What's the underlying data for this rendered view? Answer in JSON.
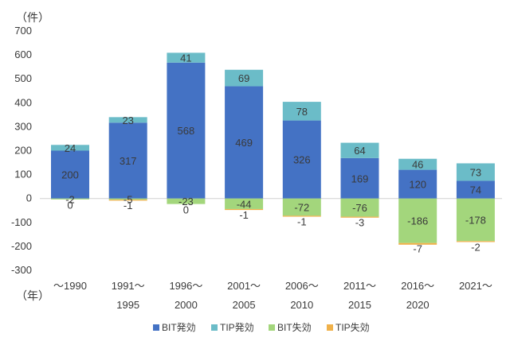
{
  "chart_data": {
    "type": "bar",
    "stacked": true,
    "y_unit_label": "（件）",
    "x_unit_label": "（年）",
    "ylim": [
      -300,
      700
    ],
    "y_ticks": [
      700,
      600,
      500,
      400,
      300,
      200,
      100,
      0,
      -100,
      -200,
      -300
    ],
    "grid": false,
    "legend_position": "bottom",
    "categories": [
      [
        "～1990",
        ""
      ],
      [
        "1991～",
        "1995"
      ],
      [
        "1996～",
        "2000"
      ],
      [
        "2001～",
        "2005"
      ],
      [
        "2006～",
        "2010"
      ],
      [
        "2011～",
        "2015"
      ],
      [
        "2016～",
        "2020"
      ],
      [
        "2021～",
        ""
      ]
    ],
    "series": [
      {
        "name": "BIT発効",
        "color": "#4472c4",
        "values": [
          200,
          317,
          568,
          469,
          326,
          169,
          120,
          74
        ]
      },
      {
        "name": "TIP発効",
        "color": "#6bbcc8",
        "values": [
          24,
          23,
          41,
          69,
          78,
          64,
          46,
          73
        ]
      },
      {
        "name": "BIT失効",
        "color": "#a3d67c",
        "values": [
          -2,
          -5,
          -23,
          -44,
          -72,
          -76,
          -186,
          -178
        ]
      },
      {
        "name": "TIP失効",
        "color": "#f0b14a",
        "values": [
          0,
          -1,
          0,
          -1,
          -1,
          -3,
          -7,
          -2
        ]
      }
    ]
  }
}
